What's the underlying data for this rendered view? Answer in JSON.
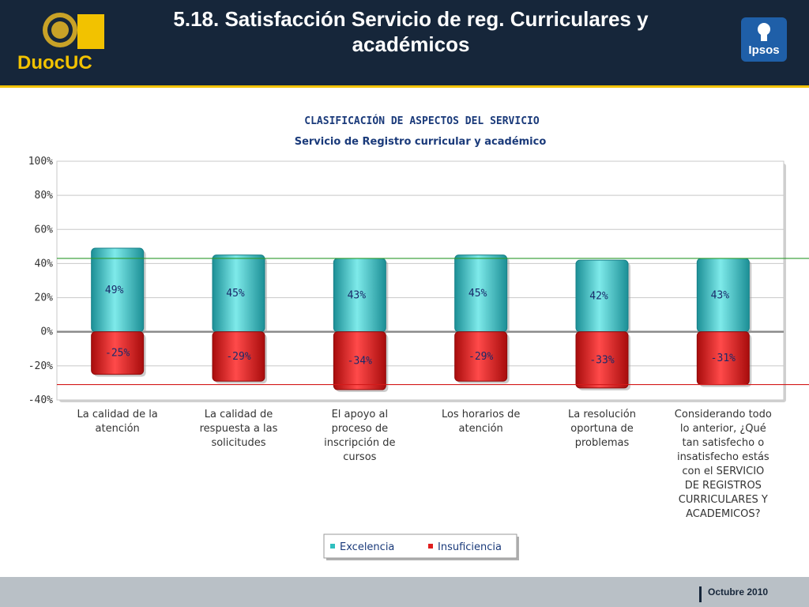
{
  "header": {
    "title_line1": "5.18. Satisfacción Servicio de reg. Curriculares y",
    "title_line2": "académicos",
    "logo_left": "DuocUC",
    "logo_right": "Ipsos"
  },
  "footer": {
    "date": "Octubre 2010"
  },
  "colors": {
    "header_bg": "#16263a",
    "header_accent": "#f2c200",
    "excelencia": "#2fbfbf",
    "insuficiencia": "#e01e1e",
    "excelencia_ref_line": "#2e9a2e",
    "insuficiencia_ref_line": "#d41a1a"
  },
  "chart_data": {
    "type": "bar",
    "title": "CLASIFICACIÓN DE ASPECTOS DEL SERVICIO",
    "subtitle": "Servicio de Registro curricular y académico",
    "ylim": [
      -40,
      100
    ],
    "yticks": [
      -40,
      -20,
      0,
      20,
      40,
      60,
      80,
      100
    ],
    "ytick_labels": [
      "-40%",
      "-20%",
      "0%",
      "20%",
      "40%",
      "60%",
      "80%",
      "100%"
    ],
    "grid": true,
    "legend_position": "bottom",
    "categories": [
      [
        "La calidad de la",
        "atención"
      ],
      [
        "La calidad de",
        "respuesta a las",
        "solicitudes"
      ],
      [
        "El apoyo al",
        "proceso de",
        "inscripción de",
        "cursos"
      ],
      [
        "Los horarios de",
        "atención"
      ],
      [
        "La resolución",
        "oportuna de",
        "problemas"
      ],
      [
        "Considerando todo",
        "lo anterior, ¿Qué",
        "tan satisfecho o",
        "insatisfecho estás",
        "con el SERVICIO",
        "DE REGISTROS",
        "CURRICULARES Y",
        "ACADEMICOS?"
      ]
    ],
    "series": [
      {
        "name": "Excelencia",
        "values": [
          49,
          45,
          43,
          45,
          42,
          43
        ],
        "labels": [
          "49%",
          "45%",
          "43%",
          "45%",
          "42%",
          "43%"
        ]
      },
      {
        "name": "Insuficiencia",
        "values": [
          -25,
          -29,
          -34,
          -29,
          -33,
          -31
        ],
        "labels": [
          "-25%",
          "-29%",
          "-34%",
          "-29%",
          "-33%",
          "-31%"
        ]
      }
    ],
    "reference_lines": [
      43,
      -31
    ]
  }
}
